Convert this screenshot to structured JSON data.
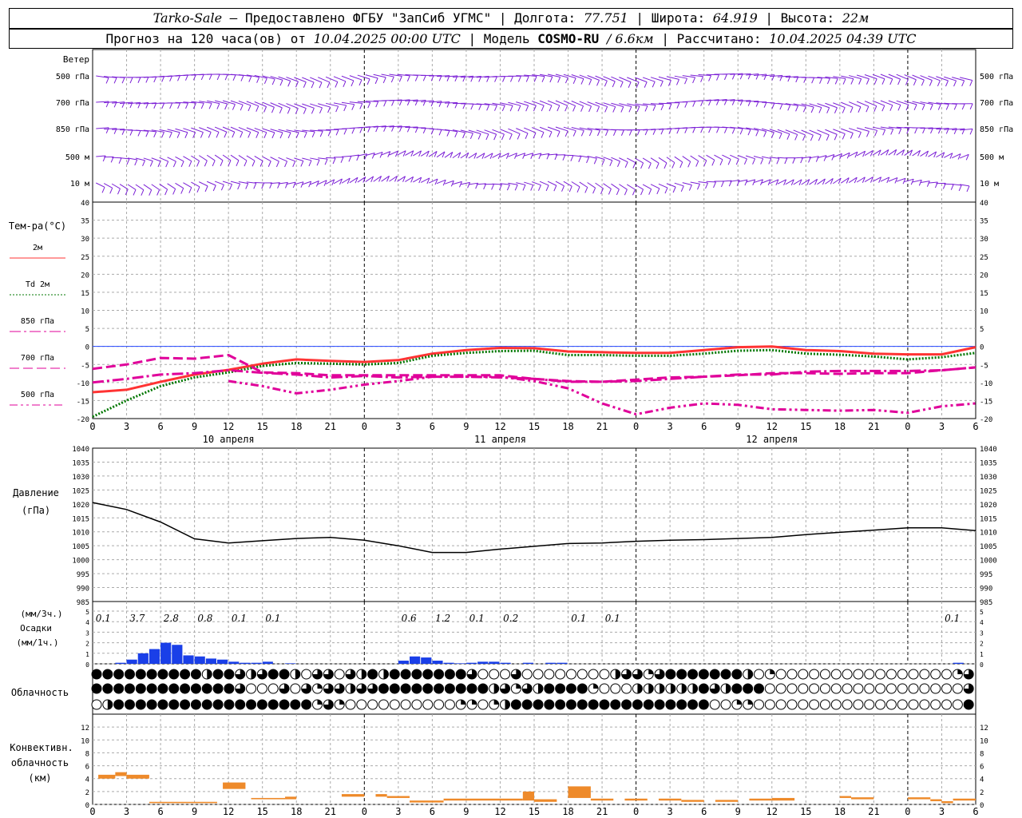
{
  "header": {
    "station": "Tarko-Sale",
    "sep": " – ",
    "provider": "Предоставлено ФГБУ \"ЗапСиб УГМС\"",
    "lon_label": "Долгота:",
    "lon": "77.751",
    "lat_label": "Широта:",
    "lat": "64.919",
    "alt_label": "Высота:",
    "alt": "22м",
    "forecast_label": "Прогноз на 120 часа(ов) от",
    "forecast_start": "10.04.2025 00:00 UTC",
    "model_label": "Модель",
    "model": "COSMO-RU",
    "model_res": "/ 6.6км",
    "calc_label": "Рассчитано:",
    "calc_time": "10.04.2025 04:39 UTC"
  },
  "chart_data": [
    {
      "type": "wind-barbs",
      "title": "Ветер",
      "levels": [
        "500 гПа",
        "700 гПа",
        "850 гПа",
        "500 м",
        "10 м"
      ],
      "color": "#7b1fd6"
    },
    {
      "type": "line",
      "ylabel": "Тем-ра(°С)",
      "ylim": [
        -20,
        40
      ],
      "yticks": [
        -20,
        -15,
        -10,
        -5,
        0,
        5,
        10,
        15,
        20,
        25,
        30,
        35,
        40
      ],
      "x_hour_labels": [
        "0",
        "3",
        "6",
        "9",
        "12",
        "15",
        "18",
        "21",
        "0",
        "3",
        "6",
        "9",
        "12",
        "15",
        "18",
        "21",
        "0",
        "3",
        "6",
        "9",
        "12",
        "15",
        "18",
        "21",
        "0",
        "3",
        "6"
      ],
      "x_day_labels": [
        "10 апреля",
        "11 апреля",
        "12 апреля"
      ],
      "x": [
        0,
        3,
        6,
        9,
        12,
        15,
        18,
        21,
        24,
        27,
        30,
        33,
        36,
        39,
        42,
        45,
        48,
        51,
        54,
        57,
        60,
        63,
        66,
        69,
        72,
        75,
        78
      ],
      "series": [
        {
          "name": "2м",
          "color": "#ff3333",
          "style": "solid",
          "values": [
            -12.7,
            -12,
            -9.8,
            -7.8,
            -6.5,
            -4.8,
            -3.6,
            -4,
            -4.3,
            -3.8,
            -2,
            -1,
            -0.4,
            -0.5,
            -1.4,
            -1.6,
            -1.8,
            -1.8,
            -1,
            -0.2,
            0,
            -1,
            -1.3,
            -2,
            -2.2,
            -2.2,
            -0.2
          ]
        },
        {
          "name": "Td  2м",
          "color": "#007700",
          "style": "dotted",
          "values": [
            -19.5,
            -15,
            -11,
            -8.6,
            -7.2,
            -5.4,
            -4.6,
            -4.8,
            -5,
            -4.6,
            -2.6,
            -1.8,
            -1.3,
            -1.2,
            -2.4,
            -2.4,
            -2.6,
            -2.6,
            -2,
            -1.2,
            -1,
            -2,
            -2.3,
            -2.8,
            -3.6,
            -3,
            -1.8
          ]
        },
        {
          "name": "850 гПа",
          "color": "#e0009a",
          "style": "dashdot",
          "values": [
            -10,
            -9,
            -7.8,
            -7.4,
            -6.6,
            -7.3,
            -7.8,
            -8.6,
            -8.2,
            -8.6,
            -8.4,
            -8.4,
            -8.6,
            -9,
            -9.8,
            -9.8,
            -9.6,
            -9,
            -8.4,
            -7.8,
            -7.8,
            -7,
            -6.8,
            -6.8,
            -6.8,
            -6.6,
            -5.8
          ]
        },
        {
          "name": "700 гПа",
          "color": "#e0009a",
          "style": "dash",
          "values": [
            -6.2,
            -5,
            -3.2,
            -3.4,
            -2.4,
            -7.2,
            -7.4,
            -8,
            -8,
            -8,
            -8,
            -8,
            -8,
            -9,
            -9.6,
            -9.8,
            -9.2,
            -8.6,
            -8.4,
            -8,
            -7.4,
            -7.4,
            -7.6,
            -7.4,
            -7.4,
            -6.6,
            -5.8
          ]
        },
        {
          "name": "500 гПа",
          "color": "#e0009a",
          "style": "dashdot2",
          "values": [
            null,
            null,
            null,
            null,
            -9.6,
            -11,
            -13,
            -12,
            -10.6,
            -9.6,
            -8.4,
            -8.4,
            -8.4,
            -9.6,
            -11.6,
            -15.8,
            -18.8,
            -17,
            -15.8,
            -16.2,
            -17.4,
            -17.6,
            -17.8,
            -17.6,
            -18.4,
            -16.6,
            -15.8
          ]
        }
      ]
    },
    {
      "type": "line",
      "ylabel": "Давление",
      "yunit": "(гПа)",
      "ylim": [
        985,
        1040
      ],
      "yticks": [
        985,
        990,
        995,
        1000,
        1005,
        1010,
        1015,
        1020,
        1025,
        1030,
        1035,
        1040
      ],
      "x": [
        0,
        3,
        6,
        9,
        12,
        15,
        18,
        21,
        24,
        27,
        30,
        33,
        36,
        39,
        42,
        45,
        48,
        51,
        54,
        57,
        60,
        63,
        66,
        69,
        72,
        75,
        78
      ],
      "values": [
        1020.5,
        1018,
        1013.5,
        1007.5,
        1006,
        1006.8,
        1007.6,
        1008,
        1007,
        1005,
        1002.6,
        1002.6,
        1003.8,
        1004.8,
        1005.8,
        1006,
        1006.6,
        1007,
        1007.2,
        1007.6,
        1008,
        1009,
        1009.8,
        1010.6,
        1011.4,
        1011.4,
        1010.4
      ],
      "color": "#000000"
    },
    {
      "type": "bar",
      "ylabel_top": "(мм/3ч.)",
      "ylabel": "Осадки",
      "yunit": "(мм/1ч.)",
      "ylim": [
        0,
        5
      ],
      "yticks": [
        0,
        1,
        2,
        3,
        4,
        5
      ],
      "color": "#1a3fe8",
      "sum3h_labels": [
        {
          "x": 1.5,
          "text": "0.1"
        },
        {
          "x": 4.5,
          "text": "3.7"
        },
        {
          "x": 7.5,
          "text": "2.8"
        },
        {
          "x": 10.5,
          "text": "0.8"
        },
        {
          "x": 13.5,
          "text": "0.1"
        },
        {
          "x": 16.5,
          "text": "0.1"
        },
        {
          "x": 28.5,
          "text": "0.6"
        },
        {
          "x": 31.5,
          "text": "1.2"
        },
        {
          "x": 34.5,
          "text": "0.1"
        },
        {
          "x": 37.5,
          "text": "0.2"
        },
        {
          "x": 43.5,
          "text": "0.1"
        },
        {
          "x": 46.5,
          "text": "0.1"
        },
        {
          "x": 76.5,
          "text": "0.1"
        }
      ],
      "hourly": [
        0,
        0,
        0.1,
        0.4,
        1,
        1.4,
        2,
        1.8,
        0.8,
        0.7,
        0.5,
        0.4,
        0.2,
        0.1,
        0.1,
        0.2,
        0,
        0.05,
        0,
        0,
        0,
        0,
        0,
        0,
        0,
        0,
        0,
        0.3,
        0.7,
        0.6,
        0.3,
        0.1,
        0.05,
        0.1,
        0.2,
        0.2,
        0.1,
        0,
        0.1,
        0,
        0.1,
        0.1,
        0,
        0,
        0,
        0,
        0,
        0,
        0,
        0,
        0,
        0,
        0,
        0,
        0,
        0,
        0,
        0,
        0,
        0,
        0,
        0,
        0,
        0,
        0,
        0,
        0,
        0,
        0,
        0,
        0,
        0,
        0,
        0,
        0,
        0,
        0.1,
        0
      ]
    },
    {
      "type": "table",
      "title": "Облачность",
      "rows": 3,
      "levels_oktas": [
        [
          8,
          8,
          8,
          8,
          8,
          8,
          8,
          8,
          8,
          8,
          4,
          8,
          8,
          6,
          4,
          6,
          8,
          8,
          4,
          0,
          6,
          6,
          0,
          6,
          4,
          8,
          4,
          8,
          8,
          8,
          8,
          8,
          8,
          8,
          6,
          0,
          0,
          0,
          6,
          0,
          0,
          0,
          0,
          0,
          0,
          0,
          0,
          4,
          6,
          6,
          2,
          6,
          8,
          8,
          8,
          8,
          8,
          8,
          8,
          4,
          0,
          2,
          0,
          0,
          0,
          0,
          0,
          0,
          0,
          0,
          0,
          0,
          0,
          0,
          0,
          0,
          0,
          0,
          2,
          6
        ],
        [
          8,
          8,
          8,
          8,
          8,
          8,
          8,
          8,
          8,
          8,
          8,
          8,
          8,
          6,
          0,
          0,
          0,
          6,
          0,
          6,
          2,
          6,
          6,
          4,
          6,
          6,
          8,
          8,
          8,
          8,
          8,
          8,
          8,
          8,
          8,
          8,
          4,
          6,
          2,
          6,
          4,
          8,
          8,
          8,
          8,
          2,
          0,
          0,
          0,
          4,
          4,
          4,
          4,
          4,
          4,
          8,
          6,
          4,
          8,
          8,
          8,
          0,
          0,
          0,
          0,
          0,
          0,
          0,
          0,
          0,
          0,
          0,
          0,
          0,
          0,
          0,
          0,
          0,
          0,
          6
        ],
        [
          0,
          4,
          8,
          8,
          8,
          8,
          8,
          8,
          8,
          8,
          8,
          8,
          8,
          8,
          8,
          8,
          8,
          8,
          8,
          8,
          2,
          6,
          2,
          0,
          0,
          0,
          0,
          0,
          0,
          0,
          0,
          0,
          0,
          2,
          2,
          0,
          2,
          4,
          8,
          8,
          8,
          8,
          8,
          8,
          8,
          8,
          8,
          8,
          8,
          8,
          8,
          8,
          8,
          8,
          8,
          8,
          0,
          0,
          2,
          2,
          0,
          0,
          0,
          0,
          0,
          0,
          0,
          0,
          0,
          0,
          0,
          0,
          0,
          0,
          0,
          0,
          0,
          0,
          0,
          8
        ]
      ]
    },
    {
      "type": "bar",
      "ylabel": "Конвективн.",
      "ylabel2": "облачность",
      "yunit": "(км)",
      "ylim": [
        0,
        14
      ],
      "yticks": [
        0,
        2,
        4,
        6,
        8,
        10,
        12
      ],
      "color": "#ee8a2a",
      "segments": [
        {
          "x0": 0.5,
          "x1": 2,
          "base": 4,
          "top": 4.6
        },
        {
          "x0": 2,
          "x1": 3,
          "base": 4.4,
          "top": 5
        },
        {
          "x0": 3,
          "x1": 5,
          "base": 4,
          "top": 4.6
        },
        {
          "x0": 5,
          "x1": 11,
          "base": 0.2,
          "top": 0.4
        },
        {
          "x0": 11.5,
          "x1": 13.5,
          "base": 2.4,
          "top": 3.4
        },
        {
          "x0": 14,
          "x1": 17,
          "base": 0.8,
          "top": 1
        },
        {
          "x0": 17,
          "x1": 18,
          "base": 0.8,
          "top": 1.2
        },
        {
          "x0": 22,
          "x1": 24,
          "base": 1.2,
          "top": 1.6
        },
        {
          "x0": 25,
          "x1": 26,
          "base": 1.2,
          "top": 1.6
        },
        {
          "x0": 26,
          "x1": 28,
          "base": 1,
          "top": 1.3
        },
        {
          "x0": 28,
          "x1": 31,
          "base": 0.3,
          "top": 0.6
        },
        {
          "x0": 31,
          "x1": 38,
          "base": 0.6,
          "top": 0.9
        },
        {
          "x0": 38,
          "x1": 39,
          "base": 0.6,
          "top": 2
        },
        {
          "x0": 39,
          "x1": 41,
          "base": 0.4,
          "top": 0.8
        },
        {
          "x0": 42,
          "x1": 44,
          "base": 1,
          "top": 2.8
        },
        {
          "x0": 44,
          "x1": 46,
          "base": 0.6,
          "top": 0.9
        },
        {
          "x0": 47,
          "x1": 49,
          "base": 0.6,
          "top": 0.9
        },
        {
          "x0": 50,
          "x1": 52,
          "base": 0.6,
          "top": 0.9
        },
        {
          "x0": 52,
          "x1": 54,
          "base": 0.4,
          "top": 0.7
        },
        {
          "x0": 55,
          "x1": 57,
          "base": 0.4,
          "top": 0.7
        },
        {
          "x0": 58,
          "x1": 60,
          "base": 0.6,
          "top": 0.9
        },
        {
          "x0": 60,
          "x1": 62,
          "base": 0.6,
          "top": 1
        },
        {
          "x0": 66,
          "x1": 67,
          "base": 1,
          "top": 1.3
        },
        {
          "x0": 67,
          "x1": 69,
          "base": 0.8,
          "top": 1.1
        },
        {
          "x0": 72,
          "x1": 74,
          "base": 0.8,
          "top": 1.1
        },
        {
          "x0": 74,
          "x1": 75,
          "base": 0.5,
          "top": 0.8
        },
        {
          "x0": 75,
          "x1": 76,
          "base": 0.2,
          "top": 0.5
        },
        {
          "x0": 76,
          "x1": 78,
          "base": 0.6,
          "top": 0.9
        }
      ]
    }
  ]
}
